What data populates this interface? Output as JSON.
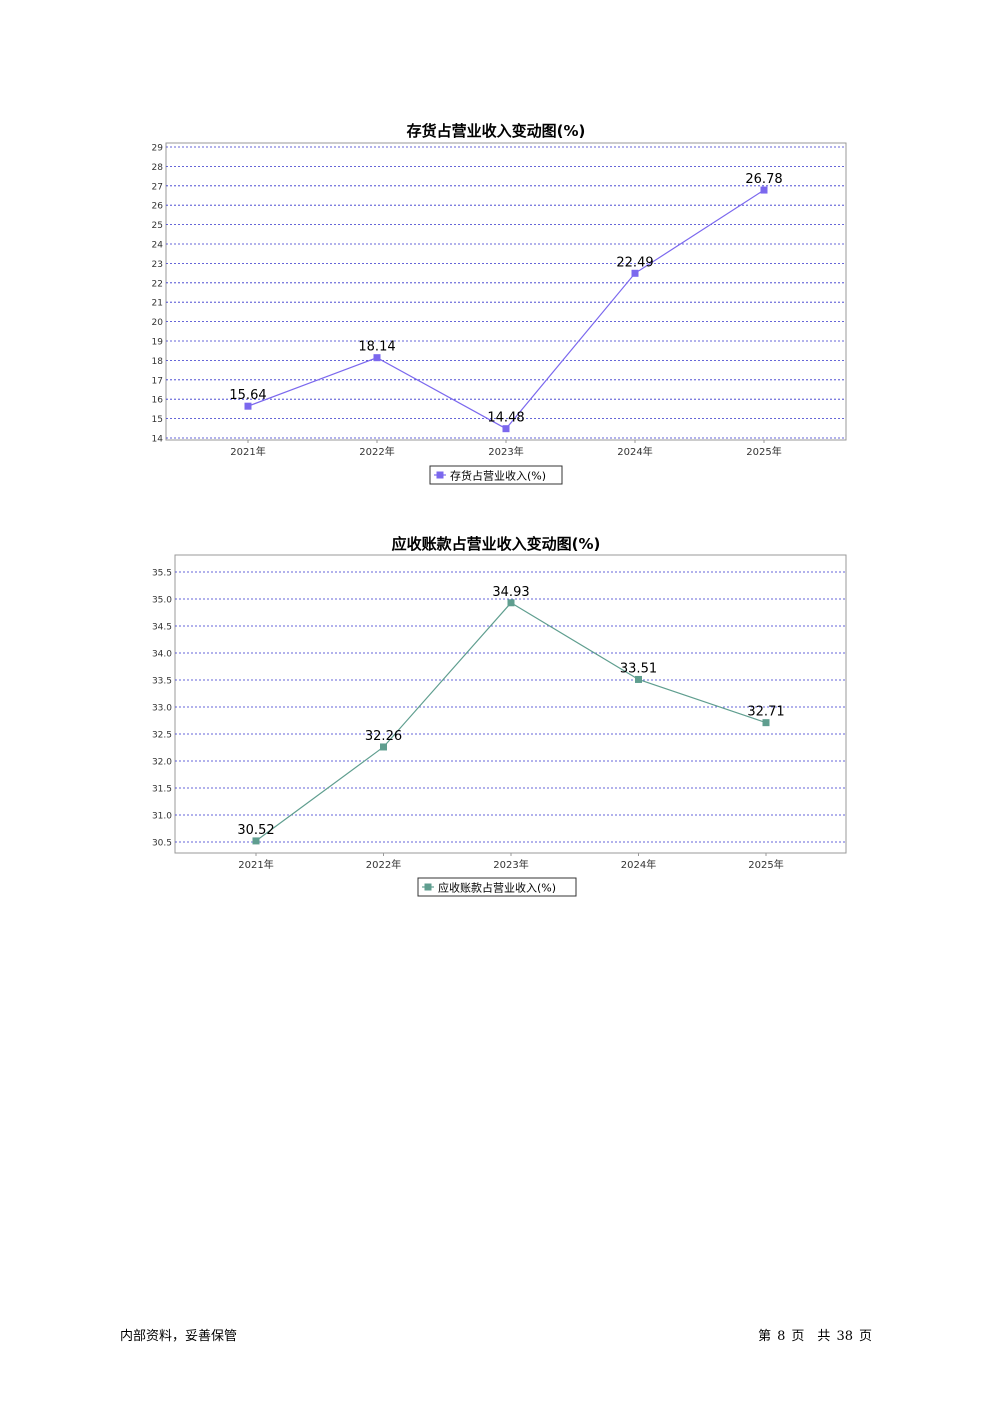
{
  "chart_data": [
    {
      "type": "line",
      "title": "存货占营业收入变动图(%)",
      "categories": [
        "2021年",
        "2022年",
        "2023年",
        "2024年",
        "2025年"
      ],
      "series": [
        {
          "name": "存货占营业收入(%)",
          "values": [
            15.64,
            18.14,
            14.48,
            22.49,
            26.78
          ],
          "color": "#7b68ee"
        }
      ],
      "ylim": [
        14,
        29
      ],
      "yticks": [
        "14",
        "15",
        "16",
        "17",
        "18",
        "19",
        "20",
        "21",
        "22",
        "23",
        "24",
        "25",
        "26",
        "27",
        "28",
        "29"
      ],
      "grid": true,
      "legend": "bottom"
    },
    {
      "type": "line",
      "title": "应收账款占营业收入变动图(%)",
      "categories": [
        "2021年",
        "2022年",
        "2023年",
        "2024年",
        "2025年"
      ],
      "series": [
        {
          "name": "应收账款占营业收入(%)",
          "values": [
            30.52,
            32.26,
            34.93,
            33.51,
            32.71
          ],
          "color": "#5f9e8f"
        }
      ],
      "ylim": [
        30.5,
        35.5
      ],
      "yticks": [
        "30.5",
        "31.0",
        "31.5",
        "32.0",
        "32.5",
        "33.0",
        "33.5",
        "34.0",
        "34.5",
        "35.0",
        "35.5"
      ],
      "grid": true,
      "legend": "bottom"
    }
  ],
  "footer": {
    "left": "内部资料，妥善保管",
    "page_prefix": "第",
    "page_current": "8",
    "page_mid": "页　共",
    "page_total": "38",
    "page_suffix": "页"
  }
}
